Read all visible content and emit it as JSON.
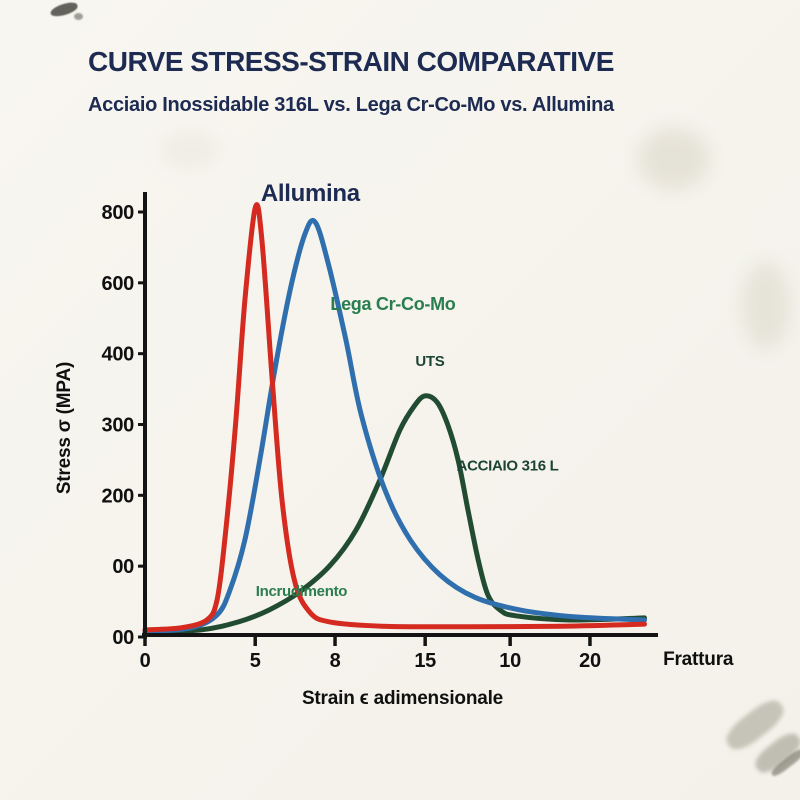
{
  "page": {
    "title": "CURVE STRESS-STRAIN COMPARATIVE",
    "subtitle": "Acciaio Inossidable 316L vs. Lega Cr-Co-Mo vs. Allumina"
  },
  "chart_data": {
    "type": "line",
    "title": "CURVE STRESS-STRAIN COMPARATIVE",
    "subtitle": "Acciaio Inossidable 316L vs. Lega Cr-Co-Mo vs. Allumina",
    "xlabel": "Strain ϵ adimensionale",
    "ylabel": "Stress σ (MPA)",
    "ylim": [
      0,
      850
    ],
    "grid": false,
    "legend": "labels-on-curves",
    "y_tick_labels": [
      "800",
      "600",
      "400",
      "300",
      "200",
      "00",
      "00"
    ],
    "x_ticks": [
      {
        "label": "0",
        "pos": 0
      },
      {
        "label": "5",
        "pos": 21.4
      },
      {
        "label": "8",
        "pos": 36.9
      },
      {
        "label": "15",
        "pos": 54.4
      },
      {
        "label": "10",
        "pos": 70.9
      },
      {
        "label": "20",
        "pos": 86.4
      }
    ],
    "x_end_label": {
      "label": "Frattura",
      "pos": 100.6
    },
    "axis_color": "#141414",
    "series": [
      {
        "name": "Acciaio 316 L",
        "color": "#224c32",
        "width": 5,
        "points": [
          [
            0,
            4
          ],
          [
            11,
            10
          ],
          [
            18,
            25
          ],
          [
            24,
            48
          ],
          [
            30,
            83
          ],
          [
            36,
            135
          ],
          [
            41,
            203
          ],
          [
            45.6,
            299
          ],
          [
            49.5,
            396
          ],
          [
            52.4,
            444
          ],
          [
            54.4,
            462
          ],
          [
            56.7,
            450
          ],
          [
            58.8,
            406
          ],
          [
            60.8,
            338
          ],
          [
            62.7,
            242
          ],
          [
            64.7,
            145
          ],
          [
            66.6,
            77
          ],
          [
            69,
            48
          ],
          [
            72,
            37
          ],
          [
            82.5,
            29
          ],
          [
            97,
            33
          ]
        ]
      },
      {
        "name": "Lega Cr-Co-Mo",
        "color": "#2f6fae",
        "width": 5,
        "points": [
          [
            0,
            6
          ],
          [
            9,
            14
          ],
          [
            14,
            39
          ],
          [
            16.5,
            87
          ],
          [
            19.4,
            184
          ],
          [
            22.3,
            338
          ],
          [
            25.2,
            512
          ],
          [
            28.2,
            667
          ],
          [
            31,
            773
          ],
          [
            33,
            798
          ],
          [
            35.5,
            721
          ],
          [
            39,
            570
          ],
          [
            42,
            425
          ],
          [
            46.6,
            280
          ],
          [
            51.5,
            184
          ],
          [
            57.3,
            116
          ],
          [
            64,
            73
          ],
          [
            73,
            48
          ],
          [
            83.5,
            35
          ],
          [
            97,
            29
          ]
        ]
      },
      {
        "name": "Allumina",
        "color": "#d42a20",
        "width": 5,
        "points": [
          [
            0,
            10
          ],
          [
            7,
            14
          ],
          [
            12,
            29
          ],
          [
            14,
            68
          ],
          [
            15.5,
            184
          ],
          [
            17.5,
            396
          ],
          [
            19.4,
            647
          ],
          [
            21.4,
            825
          ],
          [
            22.7,
            763
          ],
          [
            24.7,
            493
          ],
          [
            26.6,
            261
          ],
          [
            29,
            106
          ],
          [
            32,
            44
          ],
          [
            36,
            25
          ],
          [
            46,
            17
          ],
          [
            63,
            16
          ],
          [
            81,
            17
          ],
          [
            97,
            21
          ]
        ]
      }
    ],
    "annotations": [
      {
        "text": "Allumina",
        "x": 22.5,
        "y": 838,
        "color": "#1d2b52",
        "size": 24,
        "weight": 800
      },
      {
        "text": "Lega Cr-Co-Mo",
        "x": 36,
        "y": 628,
        "color": "#2a7d4f",
        "size": 18,
        "weight": 800
      },
      {
        "text": "UTS",
        "x": 52.5,
        "y": 520,
        "color": "#1c4434",
        "size": 15,
        "weight": 800
      },
      {
        "text": "ACCIAIO 316 L",
        "x": 60.5,
        "y": 318,
        "color": "#1c4434",
        "size": 15,
        "weight": 800
      },
      {
        "text": "Incrudimento",
        "x": 21.5,
        "y": 75,
        "color": "#2a7d4f",
        "size": 15,
        "weight": 800
      }
    ]
  }
}
